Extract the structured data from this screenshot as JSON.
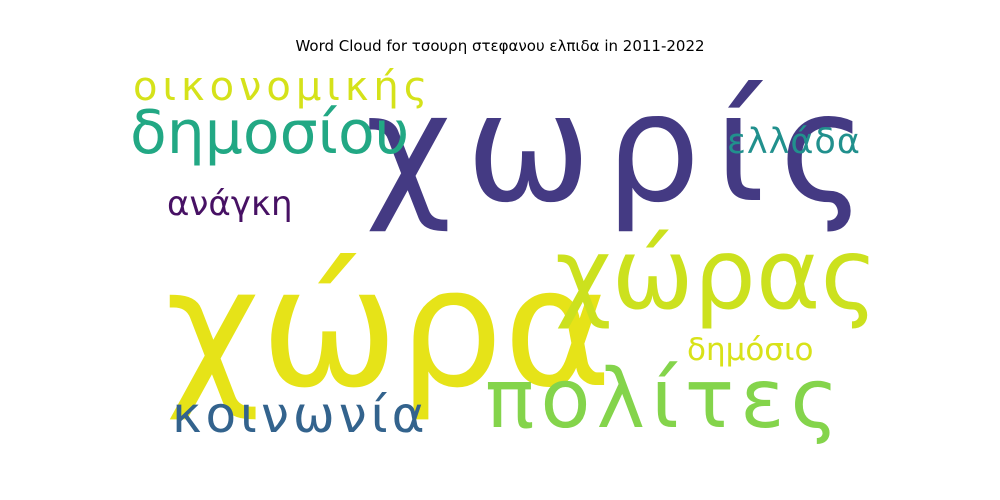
{
  "chart_data": {
    "type": "wordcloud",
    "title": "Word Cloud for τσουρη στεφανου ελπιδα in 2011-2022",
    "words": [
      {
        "text": "χωρίς",
        "weight": 1.0,
        "color": "#443a83"
      },
      {
        "text": "χώρα",
        "weight": 0.97,
        "color": "#e6e318"
      },
      {
        "text": "χώρας",
        "weight": 0.62,
        "color": "#cce11e"
      },
      {
        "text": "πολίτες",
        "weight": 0.55,
        "color": "#84d44b"
      },
      {
        "text": "δημοσίου",
        "weight": 0.42,
        "color": "#22a884"
      },
      {
        "text": "κοινωνία",
        "weight": 0.36,
        "color": "#33638d"
      },
      {
        "text": "οικονομικής",
        "weight": 0.28,
        "color": "#d5e21a"
      },
      {
        "text": "ελλάδα",
        "weight": 0.27,
        "color": "#21908d"
      },
      {
        "text": "ανάγκη",
        "weight": 0.27,
        "color": "#471164"
      },
      {
        "text": "δημόσιο",
        "weight": 0.26,
        "color": "#d8e219"
      }
    ]
  }
}
